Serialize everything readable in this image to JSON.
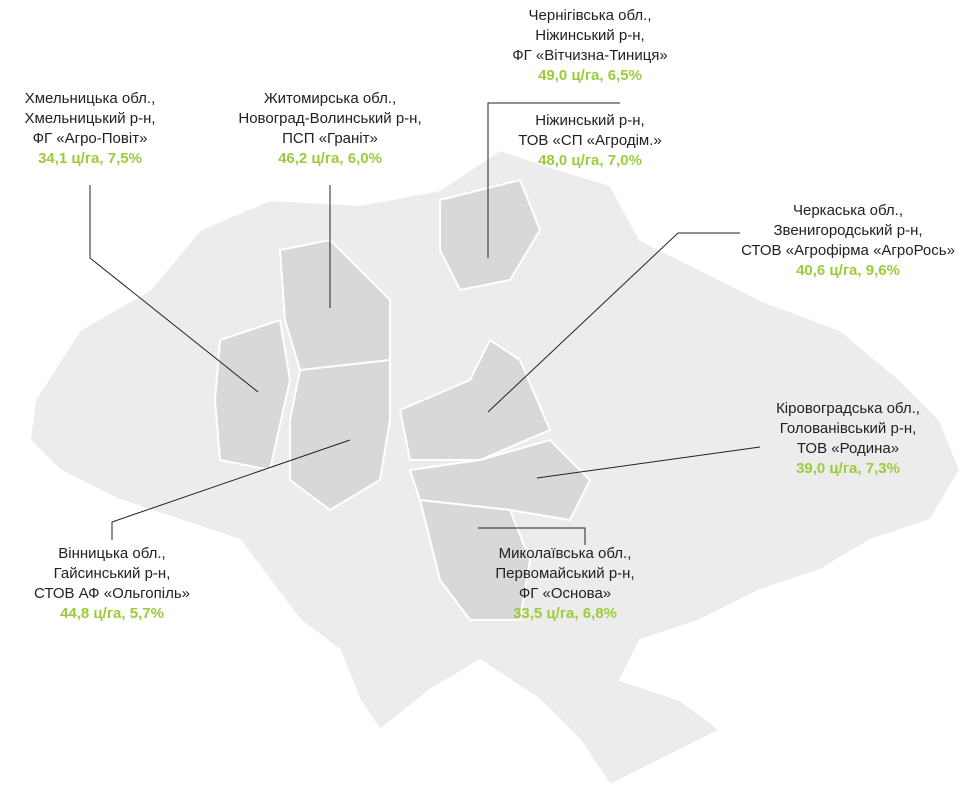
{
  "callouts": [
    {
      "lines": [
        "Хмельницька обл.,",
        "Хмельницький р-н,",
        "ФГ «Агро-Повіт»"
      ],
      "stats": "34,1 ц/га, 7,5%"
    },
    {
      "lines": [
        "Житомирська обл.,",
        "Новоград-Волинський р-н,",
        "ПСП «Граніт»"
      ],
      "stats": "46,2 ц/га, 6,0%"
    },
    {
      "lines": [
        "Чернігівська обл.,",
        "Ніжинський р-н,",
        "ФГ «Вітчизна-Тиниця»"
      ],
      "stats": "49,0 ц/га, 6,5%"
    },
    {
      "lines": [
        "Ніжинський р-н,",
        "ТОВ «СП «Агродім.»"
      ],
      "stats": "48,0 ц/га, 7,0%"
    },
    {
      "lines": [
        "Черкаська обл.,",
        "Звенигородський р-н,",
        "СТОВ «Агрофірма «АгроРось»"
      ],
      "stats": "40,6 ц/га, 9,6%"
    },
    {
      "lines": [
        "Кіровоградська обл.,",
        "Голованівський р-н,",
        "ТОВ «Родина»"
      ],
      "stats": "39,0 ц/га, 7,3%"
    },
    {
      "lines": [
        "Вінницька обл.,",
        "Гайсинський р-н,",
        "СТОВ АФ «Ольгопіль»"
      ],
      "stats": "44,8 ц/га, 5,7%"
    },
    {
      "lines": [
        "Миколаївська обл.,",
        "Первомайський р-н,",
        "ФГ «Основа»"
      ],
      "stats": "33,5 ц/га, 6,8%"
    }
  ]
}
